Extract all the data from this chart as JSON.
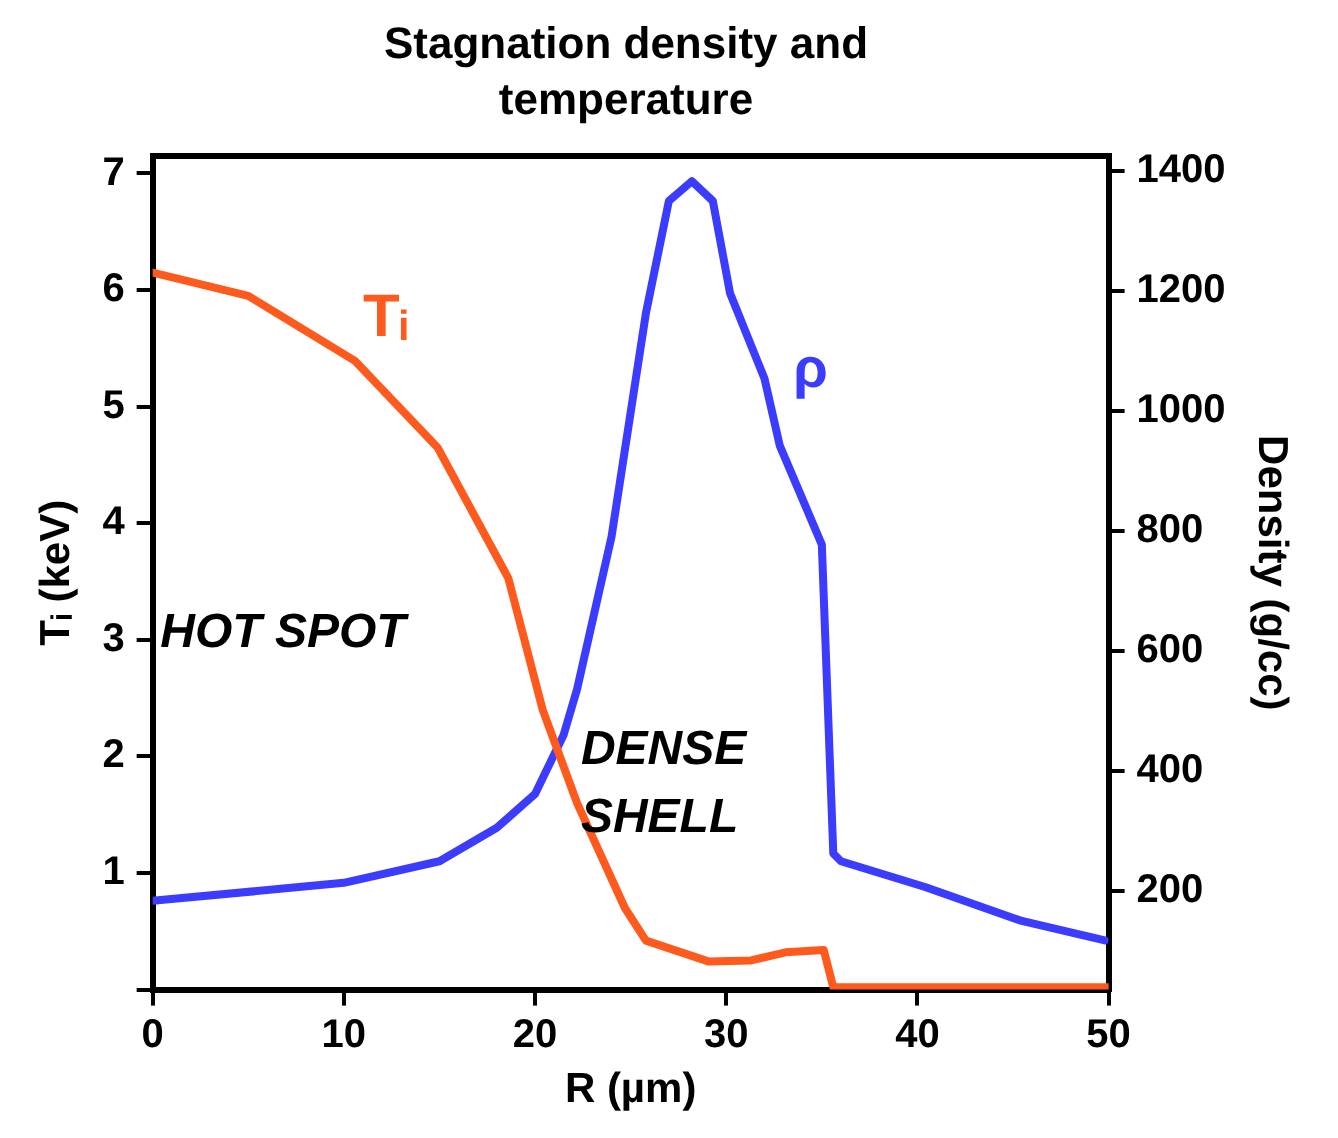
{
  "chart_data": {
    "type": "line",
    "title": "Stagnation density and temperature",
    "xlabel": "R (µm)",
    "ylabel": "Tᵢ (keV)",
    "y2label": "Density (g/cc)",
    "series": [
      {
        "name": "Tᵢ",
        "color": "#ff5a1e",
        "x": [
          0,
          5,
          10.6,
          14.9,
          18.6,
          20.4,
          22.2,
          24.7,
          25.8,
          29.1,
          31.3,
          33.1,
          35.1,
          35.6,
          40,
          45,
          50
        ],
        "values": [
          6.15,
          5.95,
          5.39,
          4.65,
          3.53,
          2.4,
          1.6,
          0.7,
          0.42,
          0.24,
          0.25,
          0.32,
          0.34,
          0.02,
          0.02,
          0.02,
          0.02
        ]
      },
      {
        "name": "ρ",
        "color": "#3c3cff",
        "axis": "y2",
        "x": [
          0,
          10,
          15,
          18,
          20,
          21.5,
          22.2,
          24,
          25.8,
          27,
          28.2,
          29.3,
          30.2,
          32,
          32.8,
          35,
          35.6,
          36,
          40.4,
          45.4,
          49.8
        ],
        "values": [
          183,
          213,
          249,
          305,
          361,
          460,
          536,
          790,
          1163,
          1350,
          1383,
          1350,
          1196,
          1054,
          942,
          777,
          262,
          249,
          206,
          150,
          117
        ]
      }
    ],
    "annotations": [
      "HOT SPOT",
      "DENSE SHELL"
    ],
    "xlim": [
      0,
      50
    ],
    "xticks": [
      0,
      10,
      20,
      30,
      40,
      50
    ],
    "ylim": [
      0,
      7.15
    ],
    "yticks": [
      {
        "value": 0,
        "label": null
      },
      1,
      2,
      3,
      4,
      5,
      6,
      7
    ],
    "y2lim": [
      35,
      1425
    ],
    "y2ticks": [
      200,
      400,
      600,
      800,
      1000,
      1200,
      1400
    ],
    "grid": false,
    "legend": false,
    "marker": "none",
    "line_style": "solid"
  }
}
